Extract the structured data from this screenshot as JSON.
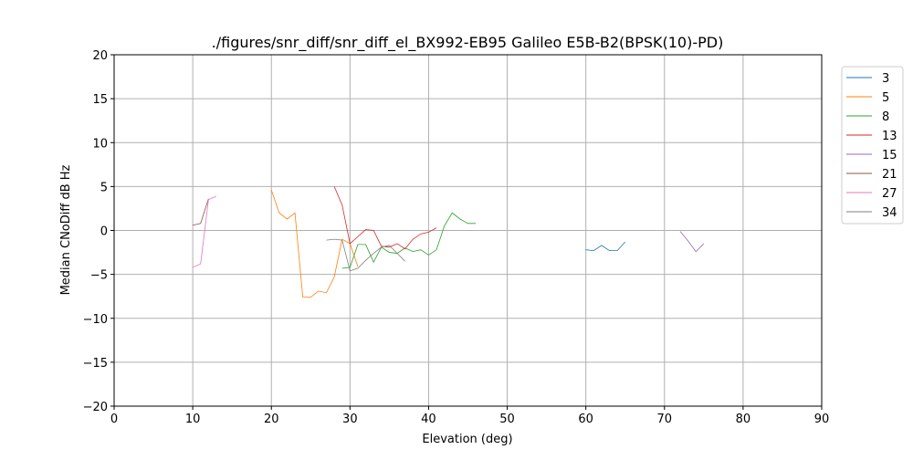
{
  "chart_data": {
    "type": "line",
    "title": "./figures/snr_diff/snr_diff_el_BX992-EB95 Galileo  E5B-B2(BPSK(10)-PD)",
    "xlabel": "Elevation (deg)",
    "ylabel": "Median CNoDiff dB Hz",
    "xlim": [
      0,
      90
    ],
    "ylim": [
      -20,
      20
    ],
    "xticks": [
      0,
      10,
      20,
      30,
      40,
      50,
      60,
      70,
      80,
      90
    ],
    "yticks": [
      -20,
      -15,
      -10,
      -5,
      0,
      5,
      10,
      15,
      20
    ],
    "grid": true,
    "legend_placement": "outside-right-top",
    "series": [
      {
        "name": "3",
        "color": "#1f77b4",
        "x": [
          60,
          61,
          62,
          63,
          64,
          65
        ],
        "y": [
          -2.2,
          -2.3,
          -1.7,
          -2.3,
          -2.3,
          -1.3
        ]
      },
      {
        "name": "5",
        "color": "#ff7f0e",
        "x": [
          20,
          21,
          22,
          23,
          24,
          25,
          26,
          27,
          28,
          29,
          30,
          31
        ],
        "y": [
          4.6,
          2.0,
          1.3,
          2.0,
          -7.6,
          -7.6,
          -6.9,
          -7.1,
          -5.3,
          -1.0,
          -1.5,
          -4.1
        ]
      },
      {
        "name": "8",
        "color": "#2ca02c",
        "x": [
          29,
          30,
          31,
          32,
          33,
          34,
          35,
          36,
          37,
          38,
          39,
          40,
          41,
          42,
          43,
          44,
          45,
          46
        ],
        "y": [
          -4.3,
          -4.2,
          -1.6,
          -1.6,
          -3.6,
          -1.9,
          -2.5,
          -2.6,
          -2.0,
          -2.4,
          -2.2,
          -2.8,
          -2.2,
          0.5,
          2.0,
          1.3,
          0.8,
          0.8
        ]
      },
      {
        "name": "13",
        "color": "#d62728",
        "x": [
          28,
          29,
          30,
          31,
          32,
          33,
          34,
          35,
          36,
          37,
          38,
          39,
          40,
          41
        ],
        "y": [
          5.0,
          2.9,
          -1.5,
          -0.7,
          0.1,
          0.0,
          -1.8,
          -1.9,
          -1.5,
          -2.1,
          -1.0,
          -0.4,
          -0.2,
          0.3
        ]
      },
      {
        "name": "15",
        "color": "#9467bd",
        "x": [
          72,
          73,
          74,
          75
        ],
        "y": [
          -0.1,
          -1.2,
          -2.4,
          -1.5
        ]
      },
      {
        "name": "21",
        "color": "#8c564b",
        "x": [
          10,
          11,
          12
        ],
        "y": [
          0.6,
          0.8,
          3.6
        ]
      },
      {
        "name": "27",
        "color": "#e377c2",
        "x": [
          10,
          11,
          12,
          13
        ],
        "y": [
          -4.2,
          -3.8,
          3.5,
          3.9
        ]
      },
      {
        "name": "34",
        "color": "#7f7f7f",
        "x": [
          27,
          28,
          29,
          30,
          31,
          32,
          33,
          34,
          35,
          36,
          37
        ],
        "y": [
          -1.1,
          -1.0,
          -1.1,
          -4.6,
          -4.3,
          -3.4,
          -2.6,
          -1.9,
          -1.7,
          -2.6,
          -3.5
        ]
      }
    ]
  }
}
